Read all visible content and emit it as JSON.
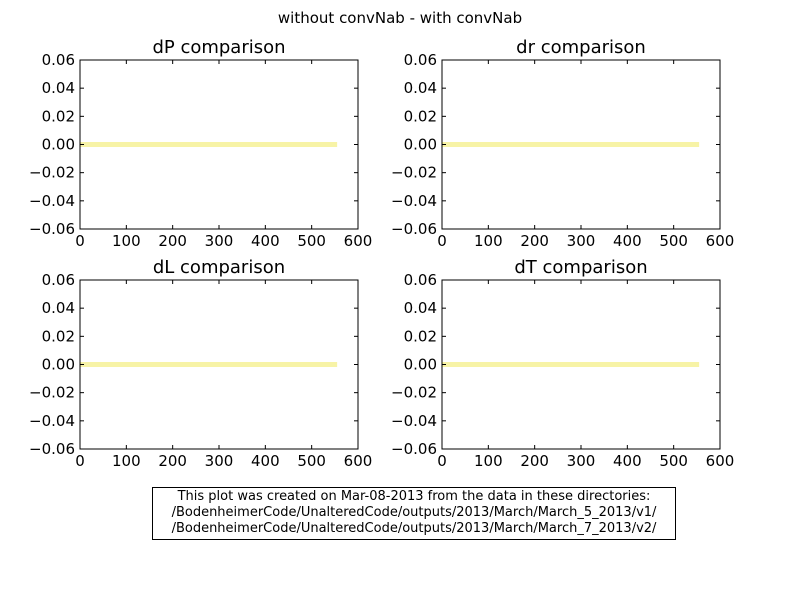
{
  "figure": {
    "suptitle": "without convNab - with convNab",
    "note_lines": [
      "This plot was created on Mar-08-2013 from the data in these directories:",
      "/BodenheimerCode/UnalteredCode/outputs/2013/March/March_5_2013/v1/",
      "/BodenheimerCode/UnalteredCode/outputs/2013/March/March_7_2013/v2/"
    ]
  },
  "chart_data": [
    {
      "type": "line",
      "title": "dP comparison",
      "xlabel": "",
      "ylabel": "",
      "xlim": [
        0,
        600
      ],
      "ylim": [
        -0.06,
        0.06
      ],
      "xticks": [
        "0",
        "100",
        "200",
        "300",
        "400",
        "500",
        "600"
      ],
      "yticks": [
        "0.06",
        "0.04",
        "0.02",
        "0.00",
        "−0.02",
        "−0.04",
        "−0.06"
      ],
      "series": [
        {
          "color": "#f7f3a6",
          "x": [
            0,
            555
          ],
          "y": [
            0,
            0
          ]
        }
      ]
    },
    {
      "type": "line",
      "title": "dr comparison",
      "xlabel": "",
      "ylabel": "",
      "xlim": [
        0,
        600
      ],
      "ylim": [
        -0.06,
        0.06
      ],
      "xticks": [
        "0",
        "100",
        "200",
        "300",
        "400",
        "500",
        "600"
      ],
      "yticks": [
        "0.06",
        "0.04",
        "0.02",
        "0.00",
        "−0.02",
        "−0.04",
        "−0.06"
      ],
      "series": [
        {
          "color": "#f7f3a6",
          "x": [
            0,
            555
          ],
          "y": [
            0,
            0
          ]
        }
      ]
    },
    {
      "type": "line",
      "title": "dL comparison",
      "xlabel": "",
      "ylabel": "",
      "xlim": [
        0,
        600
      ],
      "ylim": [
        -0.06,
        0.06
      ],
      "xticks": [
        "0",
        "100",
        "200",
        "300",
        "400",
        "500",
        "600"
      ],
      "yticks": [
        "0.06",
        "0.04",
        "0.02",
        "0.00",
        "−0.02",
        "−0.04",
        "−0.06"
      ],
      "series": [
        {
          "color": "#f7f3a6",
          "x": [
            0,
            555
          ],
          "y": [
            0,
            0
          ]
        }
      ]
    },
    {
      "type": "line",
      "title": "dT comparison",
      "xlabel": "",
      "ylabel": "",
      "xlim": [
        0,
        600
      ],
      "ylim": [
        -0.06,
        0.06
      ],
      "xticks": [
        "0",
        "100",
        "200",
        "300",
        "400",
        "500",
        "600"
      ],
      "yticks": [
        "0.06",
        "0.04",
        "0.02",
        "0.00",
        "−0.02",
        "−0.04",
        "−0.06"
      ],
      "series": [
        {
          "color": "#f7f3a6",
          "x": [
            0,
            555
          ],
          "y": [
            0,
            0
          ]
        }
      ]
    }
  ]
}
